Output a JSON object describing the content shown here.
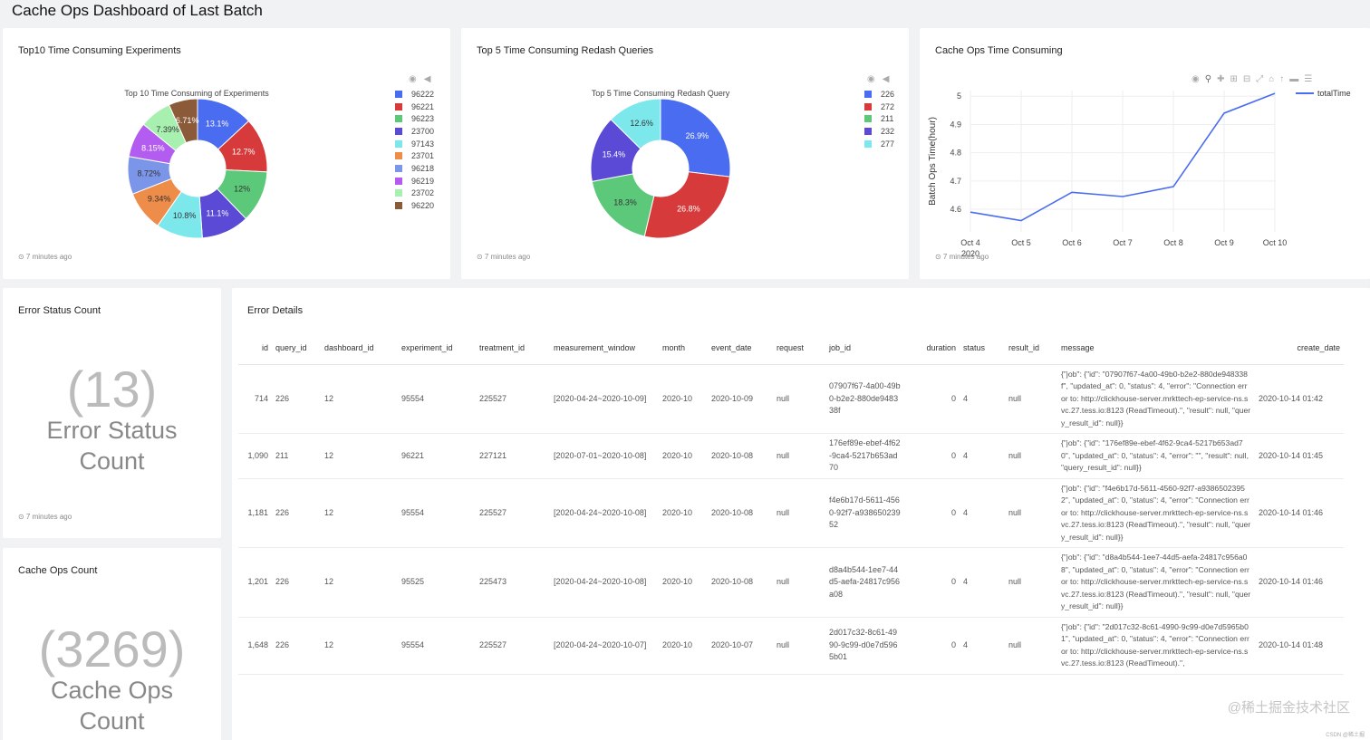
{
  "page": {
    "title": "Cache Ops Dashboard of Last Batch"
  },
  "panels": {
    "experiments": {
      "title": "Top10 Time Consuming Experiments",
      "ago": "⊙ 7 minutes ago"
    },
    "queries": {
      "title": "Top 5 Time Consuming Redash Queries",
      "ago": "⊙ 7 minutes ago"
    },
    "cacheops": {
      "title": "Cache Ops Time Consuming",
      "ago": "⊙ 7 minutes ago"
    },
    "error_status": {
      "title": "Error Status Count",
      "number": "(13)",
      "label1": "Error Status",
      "label2": "Count",
      "ago": "⊙ 7 minutes ago"
    },
    "cache_count": {
      "title": "Cache Ops Count",
      "number": "(3269)",
      "label1": "Cache Ops",
      "label2": "Count"
    },
    "error_details": {
      "title": "Error Details"
    }
  },
  "chart_data": [
    {
      "type": "pie",
      "title": "Top 10 Time Consuming of Experiments",
      "categories": [
        "96222",
        "96221",
        "96223",
        "23700",
        "97143",
        "23701",
        "96218",
        "96219",
        "23702",
        "96220"
      ],
      "values": [
        13.1,
        12.7,
        12,
        11.1,
        10.8,
        9.34,
        8.72,
        8.15,
        7.39,
        6.71
      ],
      "labels": [
        "13.1%",
        "12.7%",
        "12%",
        "11.1%",
        "10.8%",
        "9.34%",
        "8.72%",
        "8.15%",
        "7.39%",
        "6.71%"
      ],
      "colors": [
        "#4a6cf0",
        "#d63a3a",
        "#5cc97a",
        "#5a4ad6",
        "#7de8ec",
        "#ee8c4a",
        "#7b95e8",
        "#b25cf0",
        "#a8f0b0",
        "#8b5a38"
      ],
      "legend": "right"
    },
    {
      "type": "pie",
      "title": "Top 5 Time Consuming Redash Query",
      "categories": [
        "226",
        "272",
        "211",
        "232",
        "277"
      ],
      "values": [
        26.9,
        26.8,
        18.3,
        15.4,
        12.6
      ],
      "labels": [
        "26.9%",
        "26.8%",
        "18.3%",
        "15.4%",
        "12.6%"
      ],
      "colors": [
        "#4a6cf0",
        "#d63a3a",
        "#5cc97a",
        "#5a4ad6",
        "#7de8ec"
      ],
      "legend": "right"
    },
    {
      "type": "line",
      "x": [
        "Oct 4",
        "Oct 5",
        "Oct 6",
        "Oct 7",
        "Oct 8",
        "Oct 9",
        "Oct 10"
      ],
      "x_year_label": "2020",
      "series": [
        {
          "name": "totalTime",
          "values": [
            4.59,
            4.56,
            4.66,
            4.645,
            4.68,
            4.94,
            5.01
          ],
          "color": "#4a6cf0"
        }
      ],
      "ylabel": "Batch Ops Time(hour)",
      "yticks": [
        "5",
        "4.9",
        "4.8",
        "4.7",
        "4.6"
      ],
      "ylim": [
        4.52,
        5.02
      ],
      "grid": true,
      "legend": "top-right"
    }
  ],
  "table": {
    "columns": [
      "id",
      "query_id",
      "dashboard_id",
      "experiment_id",
      "treatment_id",
      "measurement_window",
      "month",
      "event_date",
      "request",
      "job_id",
      "duration",
      "status",
      "result_id",
      "message",
      "create_date"
    ],
    "rows": [
      [
        "714",
        "226",
        "12",
        "95554",
        "225527",
        "[2020-04-24~2020-10-09]",
        "2020-10",
        "2020-10-09",
        "null",
        "07907f67-4a00-49b0-b2e2-880de948338f",
        "0",
        "4",
        "null",
        "{\"job\": {\"id\": \"07907f67-4a00-49b0-b2e2-880de948338f\", \"updated_at\": 0, \"status\": 4, \"error\": \"Connection error to: http://clickhouse-server.mrkttech-ep-service-ns.svc.27.tess.io:8123 (ReadTimeout).\", \"result\": null, \"query_result_id\": null}}",
        "2020-10-14 01:42"
      ],
      [
        "1,090",
        "211",
        "12",
        "96221",
        "227121",
        "[2020-07-01~2020-10-08]",
        "2020-10",
        "2020-10-08",
        "null",
        "176ef89e-ebef-4f62-9ca4-5217b653ad70",
        "0",
        "4",
        "null",
        "{\"job\": {\"id\": \"176ef89e-ebef-4f62-9ca4-5217b653ad70\", \"updated_at\": 0, \"status\": 4, \"error\": \"\", \"result\": null, \"query_result_id\": null}}",
        "2020-10-14 01:45"
      ],
      [
        "1,181",
        "226",
        "12",
        "95554",
        "225527",
        "[2020-04-24~2020-10-08]",
        "2020-10",
        "2020-10-08",
        "null",
        "f4e6b17d-5611-4560-92f7-a93865023952",
        "0",
        "4",
        "null",
        "{\"job\": {\"id\": \"f4e6b17d-5611-4560-92f7-a93865023952\", \"updated_at\": 0, \"status\": 4, \"error\": \"Connection error to: http://clickhouse-server.mrkttech-ep-service-ns.svc.27.tess.io:8123 (ReadTimeout).\", \"result\": null, \"query_result_id\": null}}",
        "2020-10-14 01:46"
      ],
      [
        "1,201",
        "226",
        "12",
        "95525",
        "225473",
        "[2020-04-24~2020-10-08]",
        "2020-10",
        "2020-10-08",
        "null",
        "d8a4b544-1ee7-44d5-aefa-24817c956a08",
        "0",
        "4",
        "null",
        "{\"job\": {\"id\": \"d8a4b544-1ee7-44d5-aefa-24817c956a08\", \"updated_at\": 0, \"status\": 4, \"error\": \"Connection error to: http://clickhouse-server.mrkttech-ep-service-ns.svc.27.tess.io:8123 (ReadTimeout).\", \"result\": null, \"query_result_id\": null}}",
        "2020-10-14 01:46"
      ],
      [
        "1,648",
        "226",
        "12",
        "95554",
        "225527",
        "[2020-04-24~2020-10-07]",
        "2020-10",
        "2020-10-07",
        "null",
        "2d017c32-8c61-4990-9c99-d0e7d5965b01",
        "0",
        "4",
        "null",
        "{\"job\": {\"id\": \"2d017c32-8c61-4990-9c99-d0e7d5965b01\", \"updated_at\": 0, \"status\": 4, \"error\": \"Connection error to: http://clickhouse-server.mrkttech-ep-service-ns.svc.27.tess.io:8123 (ReadTimeout).\",",
        "2020-10-14 01:48"
      ]
    ]
  },
  "icons": [
    "camera-icon",
    "tag-icon",
    "zoom-icon",
    "pan-icon",
    "zoom-in-icon",
    "zoom-out-icon",
    "autoscale-icon",
    "reset-axes-icon",
    "spike-icon",
    "compare-icon",
    "closest-icon"
  ],
  "watermark": "@稀土掘金技术社区",
  "csdn": "CSDN @稀土掘"
}
